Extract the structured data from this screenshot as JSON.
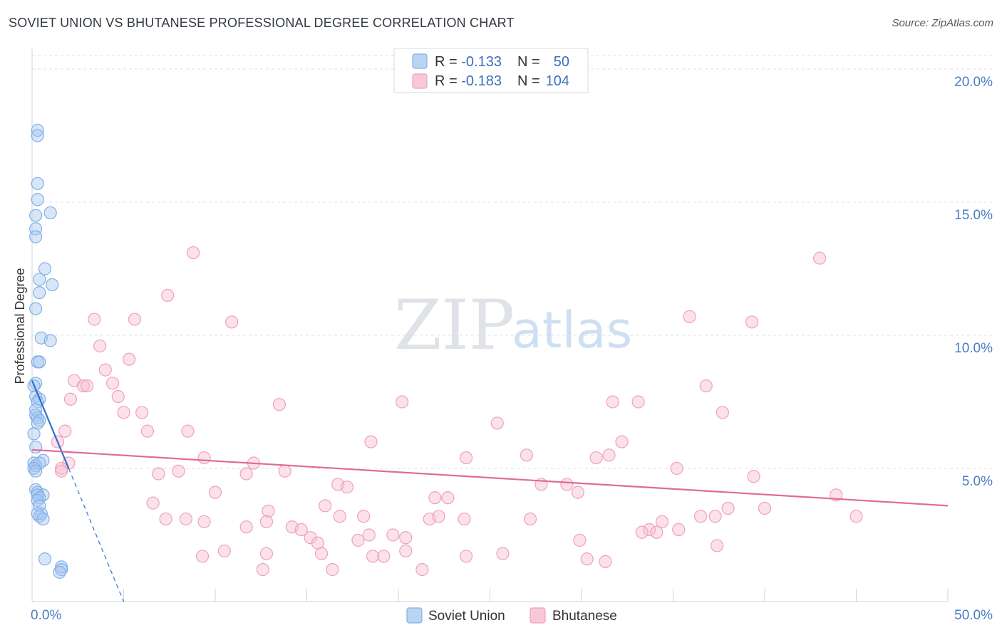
{
  "title": "SOVIET UNION VS BHUTANESE PROFESSIONAL DEGREE CORRELATION CHART",
  "source": "Source: ZipAtlas.com",
  "watermark": {
    "part1": "ZIP",
    "part2": "atlas"
  },
  "colors": {
    "blue": "#7fb0e8",
    "blue_line": "#2f6fd0",
    "pink": "#f0a0bc",
    "pink_line": "#e06a98",
    "grid": "#dde1e6",
    "axis_text": "#4a7cc4"
  },
  "chart_data": {
    "type": "scatter",
    "title": "SOVIET UNION VS BHUTANESE PROFESSIONAL DEGREE CORRELATION CHART",
    "xlabel": "",
    "ylabel": "Professional Degree",
    "xlim": [
      0,
      50
    ],
    "ylim": [
      0,
      20
    ],
    "x_tick_labels": [
      "0.0%",
      "50.0%"
    ],
    "y_ticks": [
      5,
      10,
      15,
      20
    ],
    "y_tick_labels": [
      "5.0%",
      "10.0%",
      "15.0%",
      "20.0%"
    ],
    "legend": [
      {
        "name": "Soviet Union",
        "R_label": "R = ",
        "R": "-0.133",
        "N_label": "N = ",
        "N": "50"
      },
      {
        "name": "Bhutanese",
        "R_label": "R = ",
        "R": "-0.183",
        "N_label": "N = ",
        "N": "104"
      }
    ],
    "series": [
      {
        "name": "Soviet Union",
        "color": "#7fb0e8",
        "points": [
          [
            0.3,
            17.7
          ],
          [
            0.3,
            17.5
          ],
          [
            0.3,
            15.7
          ],
          [
            0.3,
            15.1
          ],
          [
            0.2,
            14.5
          ],
          [
            1.0,
            14.6
          ],
          [
            0.2,
            14.0
          ],
          [
            0.2,
            13.7
          ],
          [
            0.7,
            12.5
          ],
          [
            0.4,
            12.1
          ],
          [
            1.1,
            11.9
          ],
          [
            0.4,
            11.6
          ],
          [
            0.2,
            11.0
          ],
          [
            0.5,
            9.9
          ],
          [
            1.0,
            9.8
          ],
          [
            0.3,
            9.0
          ],
          [
            0.4,
            9.0
          ],
          [
            0.2,
            8.2
          ],
          [
            0.1,
            8.1
          ],
          [
            0.2,
            7.7
          ],
          [
            0.4,
            7.6
          ],
          [
            0.3,
            7.5
          ],
          [
            0.2,
            7.2
          ],
          [
            0.2,
            7.0
          ],
          [
            0.3,
            6.9
          ],
          [
            0.4,
            6.8
          ],
          [
            0.3,
            6.7
          ],
          [
            0.1,
            6.3
          ],
          [
            0.2,
            5.8
          ],
          [
            0.6,
            5.3
          ],
          [
            0.1,
            5.2
          ],
          [
            0.2,
            5.1
          ],
          [
            0.4,
            5.2
          ],
          [
            0.1,
            5.0
          ],
          [
            0.2,
            4.9
          ],
          [
            0.2,
            4.2
          ],
          [
            0.3,
            4.1
          ],
          [
            0.6,
            4.0
          ],
          [
            0.3,
            4.0
          ],
          [
            0.4,
            3.9
          ],
          [
            0.3,
            3.8
          ],
          [
            0.4,
            3.6
          ],
          [
            0.5,
            3.3
          ],
          [
            0.4,
            3.2
          ],
          [
            0.3,
            3.3
          ],
          [
            0.6,
            3.1
          ],
          [
            0.7,
            1.6
          ],
          [
            1.6,
            1.3
          ],
          [
            1.6,
            1.2
          ],
          [
            1.5,
            1.1
          ]
        ],
        "trend": {
          "x1": 0.0,
          "y1": 8.3,
          "x2": 2.0,
          "y2": 5.0,
          "dash_x2": 5.0,
          "dash_y2": 0.0
        }
      },
      {
        "name": "Bhutanese",
        "color": "#f0a0bc",
        "points": [
          [
            8.8,
            13.1
          ],
          [
            43.0,
            12.9
          ],
          [
            7.4,
            11.5
          ],
          [
            3.4,
            10.6
          ],
          [
            5.6,
            10.6
          ],
          [
            10.9,
            10.5
          ],
          [
            35.9,
            10.7
          ],
          [
            39.3,
            10.5
          ],
          [
            3.7,
            9.6
          ],
          [
            5.3,
            9.1
          ],
          [
            4.0,
            8.7
          ],
          [
            2.3,
            8.3
          ],
          [
            2.8,
            8.1
          ],
          [
            3.0,
            8.1
          ],
          [
            4.4,
            8.2
          ],
          [
            36.8,
            8.1
          ],
          [
            2.1,
            7.6
          ],
          [
            4.7,
            7.7
          ],
          [
            13.5,
            7.4
          ],
          [
            20.2,
            7.5
          ],
          [
            31.7,
            7.5
          ],
          [
            33.1,
            7.5
          ],
          [
            5.0,
            7.1
          ],
          [
            6.0,
            7.1
          ],
          [
            37.7,
            7.1
          ],
          [
            25.4,
            6.7
          ],
          [
            1.8,
            6.4
          ],
          [
            6.3,
            6.4
          ],
          [
            8.5,
            6.4
          ],
          [
            1.4,
            6.0
          ],
          [
            18.5,
            6.0
          ],
          [
            32.2,
            6.0
          ],
          [
            9.4,
            5.4
          ],
          [
            23.7,
            5.4
          ],
          [
            27.0,
            5.5
          ],
          [
            30.8,
            5.4
          ],
          [
            31.5,
            5.5
          ],
          [
            2.0,
            5.2
          ],
          [
            12.1,
            5.2
          ],
          [
            1.6,
            5.0
          ],
          [
            1.6,
            4.9
          ],
          [
            8.0,
            4.9
          ],
          [
            6.9,
            4.8
          ],
          [
            11.7,
            4.8
          ],
          [
            13.8,
            4.9
          ],
          [
            35.2,
            5.0
          ],
          [
            39.4,
            4.7
          ],
          [
            16.7,
            4.4
          ],
          [
            17.2,
            4.3
          ],
          [
            27.8,
            4.4
          ],
          [
            29.2,
            4.4
          ],
          [
            10.0,
            4.1
          ],
          [
            29.8,
            4.1
          ],
          [
            43.9,
            4.0
          ],
          [
            22.0,
            3.9
          ],
          [
            22.7,
            3.9
          ],
          [
            6.6,
            3.7
          ],
          [
            16.0,
            3.6
          ],
          [
            12.9,
            3.4
          ],
          [
            38.0,
            3.5
          ],
          [
            40.0,
            3.5
          ],
          [
            7.3,
            3.1
          ],
          [
            8.4,
            3.1
          ],
          [
            9.4,
            3.0
          ],
          [
            12.8,
            3.0
          ],
          [
            16.8,
            3.2
          ],
          [
            18.1,
            3.2
          ],
          [
            21.7,
            3.1
          ],
          [
            22.2,
            3.2
          ],
          [
            23.6,
            3.1
          ],
          [
            27.2,
            3.1
          ],
          [
            36.5,
            3.2
          ],
          [
            37.3,
            3.2
          ],
          [
            34.4,
            3.0
          ],
          [
            45.0,
            3.2
          ],
          [
            11.7,
            2.8
          ],
          [
            14.2,
            2.8
          ],
          [
            14.7,
            2.7
          ],
          [
            33.7,
            2.7
          ],
          [
            34.1,
            2.6
          ],
          [
            35.3,
            2.7
          ],
          [
            15.2,
            2.4
          ],
          [
            15.6,
            2.2
          ],
          [
            18.4,
            2.5
          ],
          [
            19.7,
            2.5
          ],
          [
            17.8,
            2.3
          ],
          [
            20.4,
            2.4
          ],
          [
            33.3,
            2.6
          ],
          [
            29.9,
            2.3
          ],
          [
            37.4,
            2.1
          ],
          [
            10.5,
            1.9
          ],
          [
            12.8,
            1.8
          ],
          [
            9.3,
            1.7
          ],
          [
            15.8,
            1.8
          ],
          [
            19.2,
            1.7
          ],
          [
            18.6,
            1.7
          ],
          [
            20.4,
            1.9
          ],
          [
            23.7,
            1.7
          ],
          [
            25.7,
            1.8
          ],
          [
            31.3,
            1.5
          ],
          [
            12.6,
            1.2
          ],
          [
            16.4,
            1.2
          ],
          [
            21.3,
            1.2
          ],
          [
            30.3,
            1.6
          ]
        ],
        "trend": {
          "x1": 0.0,
          "y1": 5.7,
          "x2": 50.0,
          "y2": 3.6
        }
      }
    ]
  }
}
